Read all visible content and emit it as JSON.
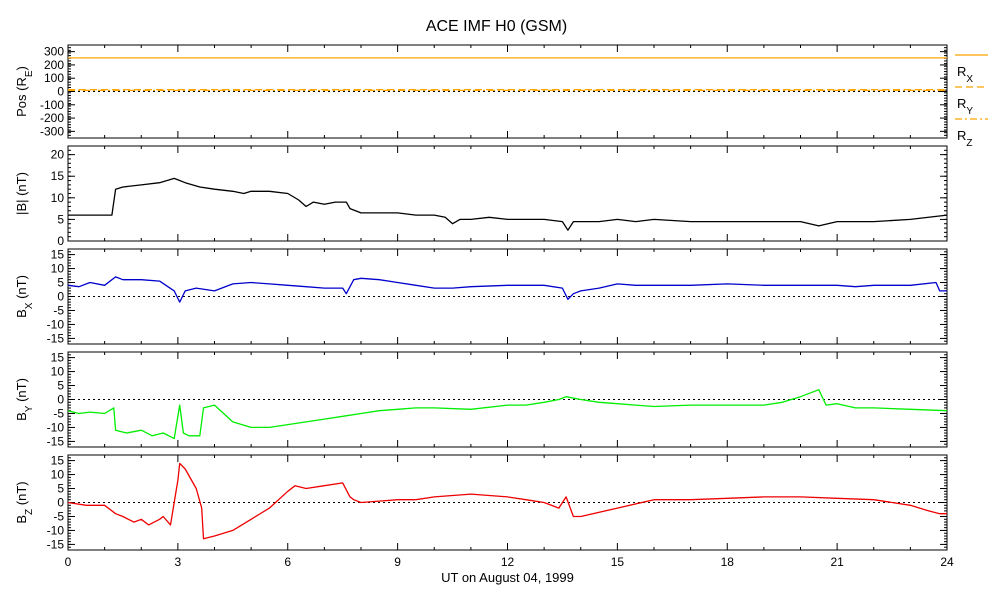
{
  "title": "ACE IMF H0 (GSM)",
  "chart_data": {
    "type": "line",
    "title": "ACE IMF H0 (GSM)",
    "xlabel": "UT on August 04, 1999",
    "xlim": [
      0,
      24
    ],
    "x_ticks": [
      0,
      3,
      6,
      9,
      12,
      15,
      18,
      21,
      24
    ],
    "x_tick_labels": [
      "0",
      "3",
      "6",
      "9",
      "12",
      "15",
      "18",
      "21",
      "24"
    ],
    "panels": [
      {
        "id": "pos",
        "ylabel": "Pos (R",
        "ylabel_sub": "E",
        "ylabel_tail": ")",
        "ylim": [
          -350,
          350
        ],
        "y_ticks": [
          -300,
          -200,
          -100,
          0,
          100,
          200,
          300
        ],
        "y_tick_labels": [
          "-300",
          "-200",
          "-100",
          "0",
          "100",
          "200",
          "300"
        ],
        "zero_line": true,
        "series": [
          {
            "name": "R",
            "sub": "X",
            "color": "#ffa500",
            "style": "solid",
            "x": [
              0,
              24
            ],
            "y": [
              253,
              253
            ]
          },
          {
            "name": "R",
            "sub": "Y",
            "color": "#ffa500",
            "style": "dashed",
            "x": [
              0,
              24
            ],
            "y": [
              14,
              14
            ]
          },
          {
            "name": "R",
            "sub": "Z",
            "color": "#ffa500",
            "style": "dashdot",
            "x": [
              0,
              24
            ],
            "y": [
              8,
              8
            ]
          }
        ]
      },
      {
        "id": "bmag",
        "ylabel": "|B| (nT)",
        "ylim": [
          0,
          22
        ],
        "y_ticks": [
          0,
          5,
          10,
          15,
          20
        ],
        "y_tick_labels": [
          "0",
          "5",
          "10",
          "15",
          "20"
        ],
        "zero_line": false,
        "series": [
          {
            "name": "",
            "color": "#000000",
            "style": "solid",
            "x": [
              0,
              1.2,
              1.3,
              1.5,
              2,
              2.5,
              2.9,
              3.05,
              3.2,
              3.6,
              4,
              4.5,
              4.8,
              5,
              5.5,
              6,
              6.3,
              6.5,
              6.7,
              7,
              7.3,
              7.6,
              7.7,
              8,
              9,
              9.5,
              10,
              10.3,
              10.5,
              10.7,
              11,
              11.5,
              12,
              12.5,
              13,
              13.5,
              13.65,
              13.8,
              14,
              14.5,
              15,
              15.5,
              16,
              17,
              18,
              19,
              20,
              20.5,
              21,
              22,
              23,
              24
            ],
            "y": [
              6,
              6,
              12,
              12.5,
              13,
              13.5,
              14.5,
              14,
              13.5,
              12.5,
              12,
              11.5,
              11,
              11.5,
              11.5,
              11,
              9.5,
              8,
              9,
              8.5,
              9,
              9,
              7.5,
              6.5,
              6.5,
              6,
              6,
              5.5,
              4,
              5,
              5,
              5.5,
              5,
              5,
              5,
              4.5,
              2.5,
              4.5,
              4.5,
              4.5,
              5,
              4.5,
              5,
              4.5,
              4.5,
              4.5,
              4.5,
              3.5,
              4.5,
              4.5,
              5,
              6
            ]
          }
        ]
      },
      {
        "id": "bx",
        "ylabel": "B",
        "ylabel_sub": "X",
        "ylabel_tail": " (nT)",
        "ylim": [
          -17,
          17
        ],
        "y_ticks": [
          -15,
          -10,
          -5,
          0,
          5,
          10,
          15
        ],
        "y_tick_labels": [
          "-15",
          "-10",
          "-5",
          "0",
          "5",
          "10",
          "15"
        ],
        "zero_line": true,
        "series": [
          {
            "name": "",
            "color": "#0000cc",
            "style": "solid",
            "x": [
              0,
              0.3,
              0.6,
              1,
              1.3,
              1.5,
              2,
              2.5,
              2.9,
              3.05,
              3.2,
              3.5,
              4,
              4.5,
              5,
              5.5,
              6,
              6.5,
              7,
              7.5,
              7.6,
              7.8,
              8,
              8.5,
              9,
              9.5,
              10,
              10.5,
              11,
              12,
              13,
              13.5,
              13.65,
              13.8,
              14,
              14.5,
              15,
              15.5,
              16,
              17,
              18,
              19,
              20,
              20.5,
              21,
              21.5,
              22,
              23,
              23.7,
              23.8,
              24
            ],
            "y": [
              4,
              3.5,
              5,
              4,
              7,
              6,
              6,
              5.5,
              2,
              -2,
              2,
              3,
              2,
              4.5,
              5,
              4.5,
              4,
              3.5,
              3,
              3,
              1,
              6,
              6.5,
              6,
              5,
              4,
              3,
              3,
              3.5,
              4,
              4,
              3,
              -1,
              1,
              2,
              3,
              4.5,
              4,
              4,
              4,
              4.5,
              4,
              4,
              4,
              4,
              3.5,
              4,
              4,
              5,
              2,
              2
            ]
          }
        ]
      },
      {
        "id": "by",
        "ylabel": "B",
        "ylabel_sub": "Y",
        "ylabel_tail": " (nT)",
        "ylim": [
          -17,
          17
        ],
        "y_ticks": [
          -15,
          -10,
          -5,
          0,
          5,
          10,
          15
        ],
        "y_tick_labels": [
          "-15",
          "-10",
          "-5",
          "0",
          "5",
          "10",
          "15"
        ],
        "zero_line": true,
        "series": [
          {
            "name": "",
            "color": "#00ee00",
            "style": "solid",
            "x": [
              0,
              0.3,
              0.6,
              1,
              1.25,
              1.3,
              1.6,
              2,
              2.3,
              2.6,
              2.9,
              3.05,
              3.15,
              3.3,
              3.6,
              3.7,
              4,
              4.5,
              5,
              5.5,
              6,
              6.5,
              7,
              7.5,
              8,
              8.5,
              9,
              9.5,
              10,
              11,
              12,
              12.5,
              13,
              13.4,
              13.6,
              14,
              14.5,
              15,
              15.5,
              16,
              17,
              18,
              19,
              19.5,
              20,
              20.5,
              20.7,
              21,
              21.5,
              22,
              23,
              24
            ],
            "y": [
              -4,
              -5,
              -4.5,
              -5,
              -3,
              -11,
              -12,
              -11,
              -13,
              -12,
              -14,
              -2,
              -12,
              -13,
              -13,
              -3,
              -2,
              -8,
              -10,
              -10,
              -9,
              -8,
              -7,
              -6,
              -5,
              -4,
              -3.5,
              -3,
              -3,
              -3.5,
              -2,
              -2,
              -1,
              0,
              1,
              0,
              -1,
              -1.5,
              -2,
              -2.5,
              -2,
              -2,
              -2,
              -1,
              1,
              3.5,
              -2,
              -1.5,
              -3,
              -3,
              -3.5,
              -4
            ]
          }
        ]
      },
      {
        "id": "bz",
        "ylabel": "B",
        "ylabel_sub": "Z",
        "ylabel_tail": " (nT)",
        "ylim": [
          -17,
          17
        ],
        "y_ticks": [
          -15,
          -10,
          -5,
          0,
          5,
          10,
          15
        ],
        "y_tick_labels": [
          "-15",
          "-10",
          "-5",
          "0",
          "5",
          "10",
          "15"
        ],
        "zero_line": true,
        "series": [
          {
            "name": "",
            "color": "#ee0000",
            "style": "solid",
            "x": [
              0,
              0.5,
              1,
              1.3,
              1.5,
              1.8,
              2,
              2.2,
              2.5,
              2.6,
              2.8,
              3,
              3.05,
              3.2,
              3.5,
              3.65,
              3.7,
              4,
              4.5,
              5,
              5.5,
              6,
              6.2,
              6.5,
              7,
              7.5,
              7.7,
              7.8,
              8,
              8.5,
              9,
              9.5,
              10,
              11,
              12,
              12.5,
              13,
              13.4,
              13.6,
              13.8,
              14,
              15,
              16,
              17,
              18,
              19,
              20,
              21,
              22,
              22.5,
              23,
              23.5,
              23.8,
              24
            ],
            "y": [
              0,
              -1,
              -1,
              -4,
              -5,
              -7,
              -6,
              -8,
              -6,
              -5,
              -8,
              8,
              14,
              12,
              5,
              -2,
              -13,
              -12,
              -10,
              -6,
              -2,
              4,
              6,
              5,
              6,
              7,
              2,
              1,
              0,
              0.5,
              1,
              1,
              2,
              3,
              2,
              1,
              0,
              -2,
              2,
              -5,
              -5,
              -2,
              1,
              1,
              1.5,
              2,
              2,
              1.5,
              1,
              0,
              -1,
              -3,
              -4,
              -4
            ]
          }
        ]
      }
    ]
  }
}
